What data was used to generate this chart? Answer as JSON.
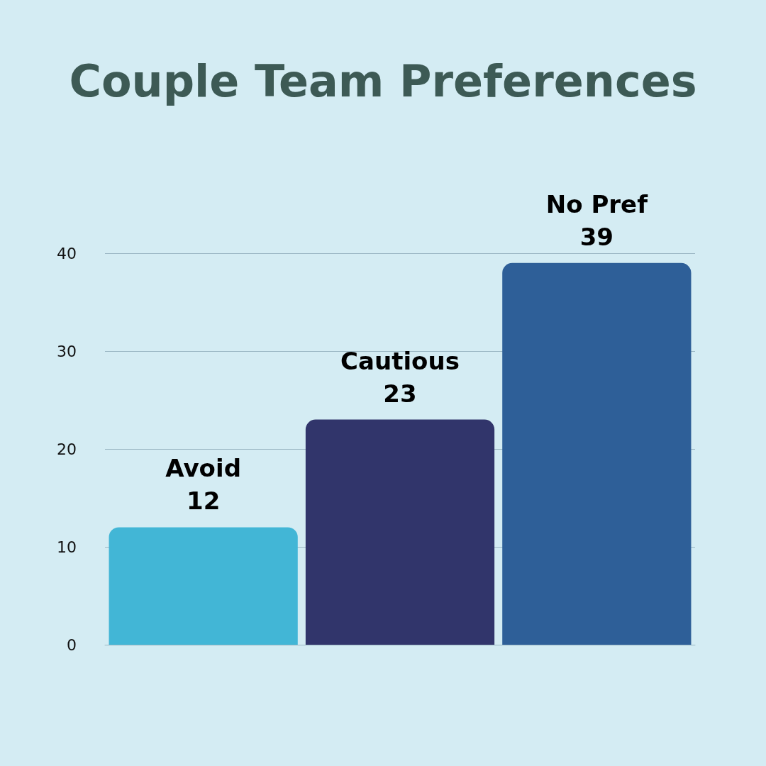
{
  "chart_data": {
    "type": "bar",
    "title": "Couple Team Preferences",
    "categories": [
      "Avoid",
      "Cautious",
      "No Pref"
    ],
    "values": [
      12,
      23,
      39
    ],
    "colors": [
      "#42b6d6",
      "#31356b",
      "#2e5f98"
    ],
    "ylim": [
      0,
      40
    ],
    "yticks": [
      0,
      10,
      20,
      30,
      40
    ],
    "grid": "y",
    "tick_labels": "y",
    "data_labels": true
  }
}
